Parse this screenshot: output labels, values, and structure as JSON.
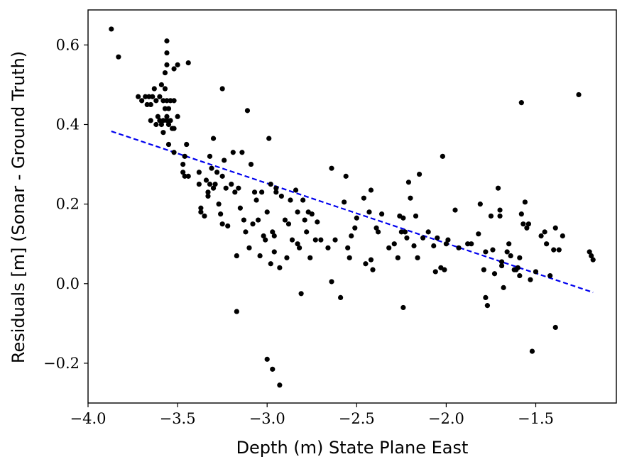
{
  "chart_data": {
    "type": "scatter",
    "title": "",
    "xlabel": "Depth (m) State Plane East",
    "ylabel": "Residuals [m] (Sonar - Ground Truth)",
    "xlim": [
      -4.0,
      -1.05
    ],
    "ylim": [
      -0.3,
      0.688
    ],
    "x_ticks": [
      -4.0,
      -3.5,
      -3.0,
      -2.5,
      -2.0,
      -1.5
    ],
    "x_tick_labels": [
      "−4.0",
      "−3.5",
      "−3.0",
      "−2.5",
      "−2.0",
      "−1.5"
    ],
    "y_ticks": [
      -0.2,
      0.0,
      0.2,
      0.4,
      0.6
    ],
    "y_tick_labels": [
      "−0.2",
      "0.0",
      "0.2",
      "0.4",
      "0.6"
    ],
    "grid": false,
    "legend": "none",
    "series": [
      {
        "kind": "scatter",
        "color": "#000000",
        "points": [
          [
            -3.87,
            0.64
          ],
          [
            -3.83,
            0.57
          ],
          [
            -3.72,
            0.47
          ],
          [
            -3.7,
            0.46
          ],
          [
            -3.68,
            0.47
          ],
          [
            -3.67,
            0.45
          ],
          [
            -3.66,
            0.47
          ],
          [
            -3.65,
            0.41
          ],
          [
            -3.65,
            0.45
          ],
          [
            -3.64,
            0.47
          ],
          [
            -3.63,
            0.49
          ],
          [
            -3.62,
            0.46
          ],
          [
            -3.62,
            0.4
          ],
          [
            -3.61,
            0.42
          ],
          [
            -3.6,
            0.47
          ],
          [
            -3.6,
            0.41
          ],
          [
            -3.59,
            0.5
          ],
          [
            -3.59,
            0.4
          ],
          [
            -3.58,
            0.46
          ],
          [
            -3.58,
            0.41
          ],
          [
            -3.58,
            0.38
          ],
          [
            -3.57,
            0.53
          ],
          [
            -3.57,
            0.49
          ],
          [
            -3.57,
            0.44
          ],
          [
            -3.56,
            0.61
          ],
          [
            -3.56,
            0.58
          ],
          [
            -3.56,
            0.55
          ],
          [
            -3.56,
            0.46
          ],
          [
            -3.56,
            0.42
          ],
          [
            -3.56,
            0.41
          ],
          [
            -3.55,
            0.44
          ],
          [
            -3.55,
            0.4
          ],
          [
            -3.54,
            0.46
          ],
          [
            -3.54,
            0.41
          ],
          [
            -3.53,
            0.39
          ],
          [
            -3.52,
            0.54
          ],
          [
            -3.52,
            0.46
          ],
          [
            -3.52,
            0.39
          ],
          [
            -3.5,
            0.55
          ],
          [
            -3.5,
            0.42
          ],
          [
            -3.55,
            0.35
          ],
          [
            -3.52,
            0.33
          ],
          [
            -3.46,
            0.32
          ],
          [
            -3.45,
            0.35
          ],
          [
            -3.47,
            0.3
          ],
          [
            -3.47,
            0.28
          ],
          [
            -3.46,
            0.27
          ],
          [
            -3.44,
            0.27
          ],
          [
            -3.44,
            0.555
          ],
          [
            -3.38,
            0.28
          ],
          [
            -3.38,
            0.25
          ],
          [
            -3.37,
            0.19
          ],
          [
            -3.37,
            0.18
          ],
          [
            -3.35,
            0.17
          ],
          [
            -3.34,
            0.26
          ],
          [
            -3.33,
            0.22
          ],
          [
            -3.33,
            0.23
          ],
          [
            -3.32,
            0.25
          ],
          [
            -3.32,
            0.32
          ],
          [
            -3.31,
            0.29
          ],
          [
            -3.3,
            0.365
          ],
          [
            -3.3,
            0.24
          ],
          [
            -3.29,
            0.25
          ],
          [
            -3.28,
            0.28
          ],
          [
            -3.27,
            0.2
          ],
          [
            -3.26,
            0.175
          ],
          [
            -3.25,
            0.49
          ],
          [
            -3.25,
            0.27
          ],
          [
            -3.25,
            0.15
          ],
          [
            -3.24,
            0.31
          ],
          [
            -3.23,
            0.24
          ],
          [
            -3.22,
            0.145
          ],
          [
            -3.2,
            0.25
          ],
          [
            -3.19,
            0.33
          ],
          [
            -3.18,
            0.23
          ],
          [
            -3.17,
            0.07
          ],
          [
            -3.16,
            0.24
          ],
          [
            -3.15,
            0.19
          ],
          [
            -3.14,
            0.33
          ],
          [
            -3.13,
            0.16
          ],
          [
            -3.12,
            0.13
          ],
          [
            -3.11,
            0.435
          ],
          [
            -3.1,
            0.09
          ],
          [
            -3.09,
            0.3
          ],
          [
            -3.08,
            0.15
          ],
          [
            -3.07,
            0.23
          ],
          [
            -3.06,
            0.21
          ],
          [
            -3.05,
            0.16
          ],
          [
            -3.04,
            0.07
          ],
          [
            -3.03,
            0.23
          ],
          [
            -3.02,
            0.12
          ],
          [
            -3.01,
            0.11
          ],
          [
            -3.0,
            0.18
          ],
          [
            -2.99,
            0.365
          ],
          [
            -2.98,
            0.25
          ],
          [
            -2.98,
            0.05
          ],
          [
            -2.97,
            0.13
          ],
          [
            -2.96,
            0.12
          ],
          [
            -2.96,
            0.08
          ],
          [
            -2.95,
            0.24
          ],
          [
            -2.95,
            0.23
          ],
          [
            -2.93,
            0.04
          ],
          [
            -2.92,
            0.22
          ],
          [
            -2.9,
            0.16
          ],
          [
            -2.89,
            0.065
          ],
          [
            -2.88,
            0.15
          ],
          [
            -2.87,
            0.21
          ],
          [
            -2.86,
            0.11
          ],
          [
            -2.84,
            0.235
          ],
          [
            -2.83,
            0.18
          ],
          [
            -2.83,
            0.1
          ],
          [
            -2.82,
            0.09
          ],
          [
            -2.8,
            0.21
          ],
          [
            -2.79,
            0.16
          ],
          [
            -2.78,
            0.13
          ],
          [
            -2.77,
            0.18
          ],
          [
            -2.76,
            0.065
          ],
          [
            -2.75,
            0.175
          ],
          [
            -2.73,
            0.11
          ],
          [
            -2.72,
            0.155
          ],
          [
            -2.7,
            0.11
          ],
          [
            -2.66,
            0.09
          ],
          [
            -2.64,
            0.29
          ],
          [
            -2.64,
            0.005
          ],
          [
            -2.62,
            0.11
          ],
          [
            -2.59,
            -0.035
          ],
          [
            -2.57,
            0.205
          ],
          [
            -2.56,
            0.27
          ],
          [
            -2.55,
            0.09
          ],
          [
            -2.54,
            0.065
          ],
          [
            -2.53,
            0.12
          ],
          [
            -2.51,
            0.14
          ],
          [
            -2.5,
            0.165
          ],
          [
            -2.46,
            0.215
          ],
          [
            -2.45,
            0.05
          ],
          [
            -2.43,
            0.18
          ],
          [
            -2.42,
            0.235
          ],
          [
            -2.42,
            0.06
          ],
          [
            -2.41,
            0.035
          ],
          [
            -2.39,
            0.14
          ],
          [
            -2.38,
            0.13
          ],
          [
            -2.36,
            0.175
          ],
          [
            -2.32,
            0.09
          ],
          [
            -2.29,
            0.1
          ],
          [
            -2.27,
            0.065
          ],
          [
            -2.26,
            0.17
          ],
          [
            -2.25,
            0.13
          ],
          [
            -2.24,
            0.165
          ],
          [
            -2.23,
            0.13
          ],
          [
            -2.22,
            0.115
          ],
          [
            -2.21,
            0.255
          ],
          [
            -2.2,
            0.215
          ],
          [
            -2.18,
            0.095
          ],
          [
            -2.17,
            0.17
          ],
          [
            -2.16,
            0.065
          ],
          [
            -2.15,
            0.275
          ],
          [
            -2.13,
            0.115
          ],
          [
            -2.1,
            0.13
          ],
          [
            -2.07,
            0.095
          ],
          [
            -2.06,
            0.03
          ],
          [
            -2.05,
            0.115
          ],
          [
            -2.03,
            0.04
          ],
          [
            -2.02,
            0.32
          ],
          [
            -2.01,
            0.035
          ],
          [
            -2.0,
            0.1
          ],
          [
            -1.99,
            0.11
          ],
          [
            -1.95,
            0.185
          ],
          [
            -1.93,
            0.09
          ],
          [
            -1.88,
            0.1
          ],
          [
            -1.86,
            0.1
          ],
          [
            -1.82,
            0.125
          ],
          [
            -1.81,
            0.2
          ],
          [
            -1.79,
            0.035
          ],
          [
            -1.78,
            0.08
          ],
          [
            -1.78,
            -0.035
          ],
          [
            -1.77,
            -0.055
          ],
          [
            -1.75,
            0.17
          ],
          [
            -1.74,
            0.085
          ],
          [
            -1.73,
            0.025
          ],
          [
            -1.71,
            0.24
          ],
          [
            -1.7,
            0.185
          ],
          [
            -1.7,
            0.17
          ],
          [
            -1.69,
            0.055
          ],
          [
            -1.69,
            0.045
          ],
          [
            -1.68,
            -0.01
          ],
          [
            -1.66,
            0.08
          ],
          [
            -1.65,
            0.1
          ],
          [
            -1.64,
            0.07
          ],
          [
            -1.62,
            0.035
          ],
          [
            -1.61,
            0.035
          ],
          [
            -1.6,
            0.04
          ],
          [
            -1.59,
            0.065
          ],
          [
            -1.59,
            0.02
          ],
          [
            -1.58,
            0.455
          ],
          [
            -1.58,
            0.175
          ],
          [
            -1.57,
            0.15
          ],
          [
            -1.56,
            0.205
          ],
          [
            -1.55,
            0.14
          ],
          [
            -1.54,
            0.15
          ],
          [
            -1.53,
            0.01
          ],
          [
            -1.52,
            -0.17
          ],
          [
            -1.5,
            0.03
          ],
          [
            -1.47,
            0.12
          ],
          [
            -1.45,
            0.13
          ],
          [
            -1.44,
            0.1
          ],
          [
            -1.42,
            0.02
          ],
          [
            -1.4,
            0.085
          ],
          [
            -1.39,
            0.14
          ],
          [
            -1.39,
            -0.11
          ],
          [
            -1.37,
            0.085
          ],
          [
            -1.35,
            0.12
          ],
          [
            -1.26,
            0.475
          ],
          [
            -1.2,
            0.08
          ],
          [
            -1.19,
            0.07
          ],
          [
            -1.18,
            0.06
          ],
          [
            -3.0,
            -0.19
          ],
          [
            -2.97,
            -0.215
          ],
          [
            -2.93,
            -0.255
          ],
          [
            -3.17,
            -0.07
          ],
          [
            -2.81,
            -0.025
          ],
          [
            -2.24,
            -0.06
          ]
        ]
      },
      {
        "kind": "trend",
        "color": "#0000ee",
        "linestyle": "dashed",
        "line": [
          [
            -3.87,
            0.383
          ],
          [
            -1.18,
            -0.022
          ]
        ]
      }
    ]
  }
}
